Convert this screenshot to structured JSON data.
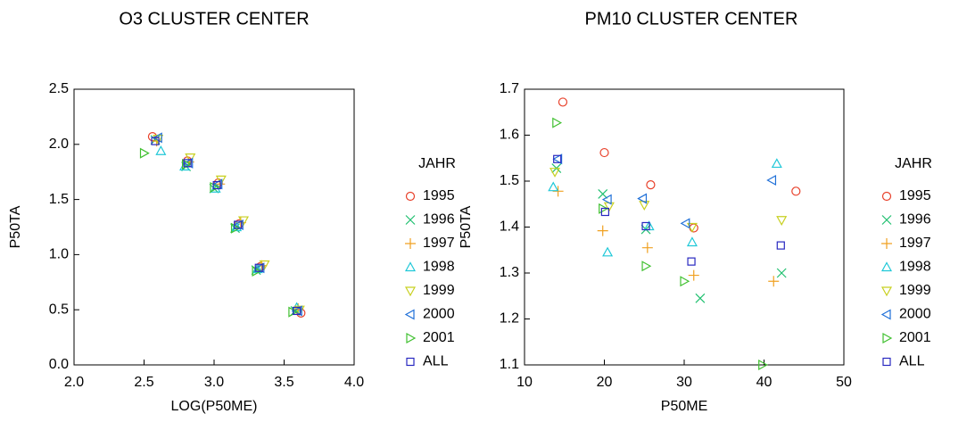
{
  "chart_data": [
    {
      "type": "scatter",
      "title": "O3 CLUSTER CENTER",
      "xlabel": "LOG(P50ME)",
      "ylabel": "P50TA",
      "legend_title": "JAHR",
      "xlim": [
        2,
        4
      ],
      "xticks": [
        {
          "value": 2,
          "label": "2.0"
        },
        2.5,
        {
          "value": 3,
          "label": "3.0"
        },
        3.5,
        {
          "value": 4,
          "label": "4.0"
        }
      ],
      "ylim": [
        0,
        2.5
      ],
      "yticks": [
        {
          "value": 0,
          "label": "0.0"
        },
        0.5,
        {
          "value": 1,
          "label": "1.0"
        },
        1.5,
        {
          "value": 2,
          "label": "2.0"
        },
        2.5
      ],
      "series": [
        {
          "name": "1995",
          "color": "#e8402a",
          "marker": "circle",
          "x": [
            2.56,
            2.81,
            3.03,
            3.18,
            3.33,
            3.62
          ],
          "values": [
            2.07,
            1.85,
            1.65,
            1.28,
            0.89,
            0.47
          ]
        },
        {
          "name": "1996",
          "color": "#20c070",
          "marker": "x",
          "x": [
            2.58,
            2.8,
            3.0,
            3.15,
            3.3,
            3.58
          ],
          "values": [
            2.04,
            1.8,
            1.6,
            1.24,
            0.86,
            0.49
          ]
        },
        {
          "name": "1997",
          "color": "#f0a020",
          "marker": "plus",
          "x": [
            2.59,
            2.82,
            3.04,
            3.19,
            3.34,
            3.6
          ],
          "values": [
            2.03,
            1.84,
            1.64,
            1.29,
            0.9,
            0.51
          ]
        },
        {
          "name": "1998",
          "color": "#20c8d8",
          "marker": "triangle-up",
          "x": [
            2.62,
            2.79,
            3.01,
            3.16,
            3.31,
            3.59
          ],
          "values": [
            1.94,
            1.8,
            1.6,
            1.25,
            0.87,
            0.52
          ]
        },
        {
          "name": "1999",
          "color": "#c8d020",
          "marker": "triangle-down",
          "x": [
            2.6,
            2.83,
            3.05,
            3.21,
            3.36,
            3.61
          ],
          "values": [
            2.05,
            1.88,
            1.68,
            1.31,
            0.91,
            0.5
          ]
        },
        {
          "name": "2000",
          "color": "#2070d8",
          "marker": "triangle-left",
          "x": [
            2.6,
            2.82,
            3.03,
            3.18,
            3.33,
            3.6
          ],
          "values": [
            2.06,
            1.83,
            1.64,
            1.27,
            0.88,
            0.49
          ]
        },
        {
          "name": "2001",
          "color": "#40c030",
          "marker": "triangle-right",
          "x": [
            2.5,
            2.8,
            3.0,
            3.15,
            3.3,
            3.56
          ],
          "values": [
            1.92,
            1.82,
            1.61,
            1.24,
            0.85,
            0.48
          ]
        },
        {
          "name": "ALL",
          "color": "#2828c0",
          "marker": "square",
          "x": [
            2.58,
            2.81,
            3.02,
            3.17,
            3.32,
            3.59
          ],
          "values": [
            2.03,
            1.83,
            1.63,
            1.27,
            0.88,
            0.49
          ]
        }
      ]
    },
    {
      "type": "scatter",
      "title": "PM10 CLUSTER CENTER",
      "xlabel": "P50ME",
      "ylabel": "P50TA",
      "legend_title": "JAHR",
      "xlim": [
        10,
        50
      ],
      "xticks": [
        10,
        20,
        30,
        40,
        50
      ],
      "ylim": [
        1.1,
        1.7
      ],
      "yticks": [
        1.1,
        1.2,
        1.3,
        1.4,
        1.5,
        1.6,
        1.7
      ],
      "series": [
        {
          "name": "1995",
          "color": "#e8402a",
          "marker": "circle",
          "x": [
            14.8,
            20,
            25.8,
            31.2,
            44
          ],
          "values": [
            1.672,
            1.562,
            1.492,
            1.398,
            1.478
          ]
        },
        {
          "name": "1996",
          "color": "#20c070",
          "marker": "x",
          "x": [
            14,
            19.8,
            25.2,
            32,
            42.2
          ],
          "values": [
            1.528,
            1.472,
            1.395,
            1.245,
            1.3
          ]
        },
        {
          "name": "1997",
          "color": "#f0a020",
          "marker": "plus",
          "x": [
            14.2,
            19.8,
            25.4,
            31.2,
            41.2
          ],
          "values": [
            1.478,
            1.392,
            1.355,
            1.295,
            1.282
          ]
        },
        {
          "name": "1998",
          "color": "#20c8d8",
          "marker": "triangle-up",
          "x": [
            13.6,
            20.4,
            25.6,
            31,
            41.6
          ],
          "values": [
            1.487,
            1.345,
            1.402,
            1.367,
            1.538
          ]
        },
        {
          "name": "1999",
          "color": "#c8d020",
          "marker": "triangle-down",
          "x": [
            13.8,
            20.6,
            25,
            31,
            42.2
          ],
          "values": [
            1.52,
            1.445,
            1.448,
            1.4,
            1.415
          ]
        },
        {
          "name": "2000",
          "color": "#2070d8",
          "marker": "triangle-left",
          "x": [
            14.2,
            20.4,
            24.8,
            30.2,
            41
          ],
          "values": [
            1.548,
            1.46,
            1.462,
            1.408,
            1.502
          ]
        },
        {
          "name": "2001",
          "color": "#40c030",
          "marker": "triangle-right",
          "x": [
            14,
            19.8,
            25.2,
            30,
            39.8
          ],
          "values": [
            1.627,
            1.44,
            1.315,
            1.282,
            1.1
          ]
        },
        {
          "name": "ALL",
          "color": "#2828c0",
          "marker": "square",
          "x": [
            14.1,
            20.1,
            25.2,
            30.9,
            42.1
          ],
          "values": [
            1.548,
            1.433,
            1.402,
            1.325,
            1.36
          ]
        }
      ]
    }
  ]
}
